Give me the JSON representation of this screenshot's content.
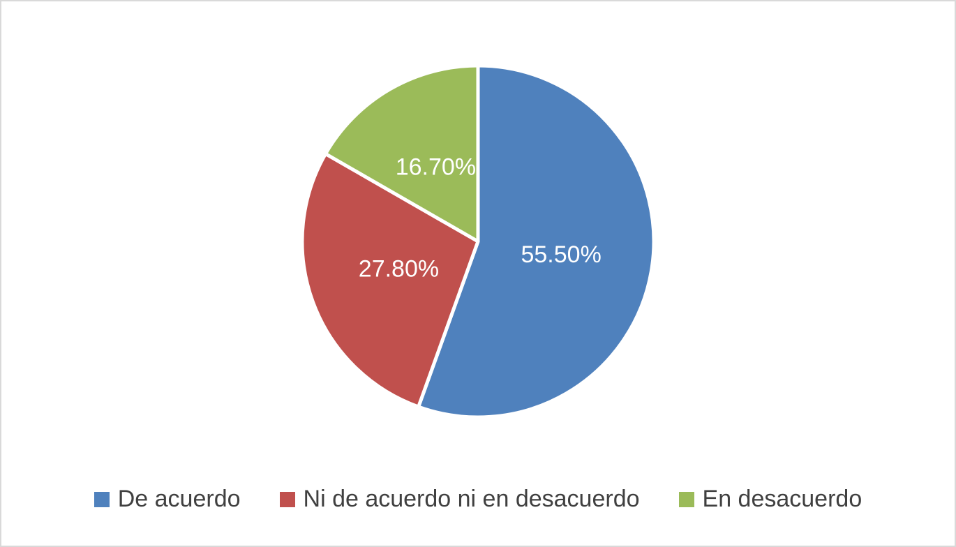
{
  "chart_data": {
    "type": "pie",
    "categories": [
      "De acuerdo",
      "Ni de acuerdo ni en desacuerdo",
      "En desacuerdo"
    ],
    "values": [
      55.5,
      27.8,
      16.7
    ],
    "data_labels": [
      "55.50%",
      "27.80%",
      "16.70%"
    ],
    "colors": [
      "#4f81bd",
      "#c0504d",
      "#9bbb59"
    ],
    "start_angle": "12 o'clock",
    "direction": "clockwise",
    "legend_placement": "bottom"
  }
}
